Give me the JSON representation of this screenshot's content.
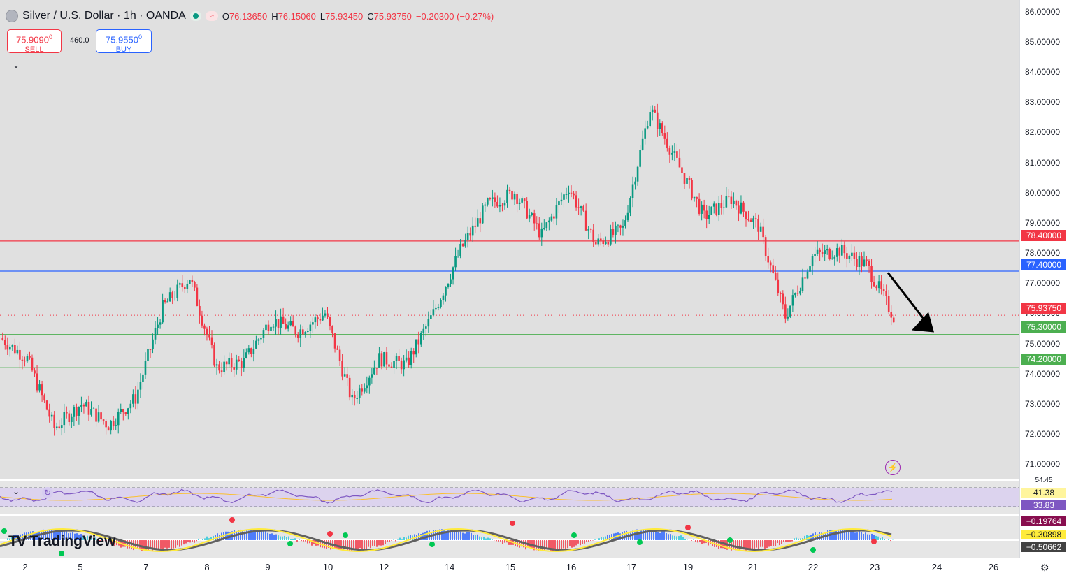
{
  "header": {
    "symbol_title": "Silver / U.S. Dollar · 1h · OANDA",
    "ohlc": {
      "o_label": "O",
      "o": "76.13650",
      "h_label": "H",
      "h": "76.15060",
      "l_label": "L",
      "l": "75.93450",
      "c_label": "C",
      "c": "75.93750",
      "change": "−0.20300 (−0.27%)"
    },
    "sell_price": "75.9090",
    "sell_sup": "0",
    "sell_label": "SELL",
    "buy_price": "75.9550",
    "buy_sup": "0",
    "buy_label": "BUY",
    "spread": "460.0"
  },
  "price_axis": {
    "ticks": [
      "86.00000",
      "85.00000",
      "84.00000",
      "83.00000",
      "82.00000",
      "81.00000",
      "80.00000",
      "79.00000",
      "78.00000",
      "77.00000",
      "76.00000",
      "75.00000",
      "74.00000",
      "73.00000",
      "72.00000",
      "71.00000"
    ],
    "tags": {
      "resistance": "78.40000",
      "blue_level": "77.40000",
      "last_price": "75.93750",
      "support_1": "75.30000",
      "support_2": "74.20000"
    }
  },
  "time_axis": {
    "labels": [
      "2",
      "5",
      "7",
      "8",
      "9",
      "10",
      "12",
      "14",
      "15",
      "16",
      "17",
      "19",
      "21",
      "22",
      "23",
      "24",
      "26"
    ]
  },
  "indicators": {
    "rsi_top": "54.45",
    "rsi_value": "41.38",
    "rsi_ma": "33.83",
    "macd_values": [
      "−0.19764",
      "−0.30898",
      "−0.50662"
    ]
  },
  "branding": {
    "logo_text": "TradingView"
  },
  "colors": {
    "up": "#089981",
    "down": "#f23645",
    "resistance": "#f23645",
    "blue_level": "#2962ff",
    "support": "#4caf50",
    "rsi": "#7e57c2"
  },
  "chart_data": {
    "type": "candlestick",
    "symbol": "XAGUSD",
    "timeframe": "1h",
    "ylim": [
      70.5,
      86.2
    ],
    "hlines": [
      {
        "name": "resistance",
        "value": 78.4
      },
      {
        "name": "blue_level",
        "value": 77.4
      },
      {
        "name": "support_1",
        "value": 75.3
      },
      {
        "name": "support_2",
        "value": 74.2
      }
    ],
    "last_price": 75.9375,
    "annotation": "down arrow pointing toward 75.30",
    "close_path": [
      [
        2,
        75.2
      ],
      [
        3,
        74.5
      ],
      [
        4,
        72.2
      ],
      [
        5,
        73.0
      ],
      [
        6,
        72.3
      ],
      [
        7,
        73.2
      ],
      [
        8,
        76.2
      ],
      [
        9,
        77.2
      ],
      [
        10,
        74.2
      ],
      [
        11,
        74.4
      ],
      [
        12,
        75.8
      ],
      [
        13,
        75.4
      ],
      [
        14,
        76.0
      ],
      [
        15,
        73.1
      ],
      [
        16,
        74.5
      ],
      [
        17,
        74.3
      ],
      [
        18,
        76.0
      ],
      [
        19,
        78.1
      ],
      [
        20,
        79.6
      ],
      [
        21,
        80.0
      ],
      [
        22,
        78.6
      ],
      [
        23,
        80.2
      ],
      [
        24,
        78.3
      ],
      [
        25,
        78.8
      ],
      [
        26,
        82.8
      ],
      [
        27,
        81.0
      ],
      [
        28,
        79.2
      ],
      [
        29,
        79.8
      ],
      [
        30,
        78.9
      ],
      [
        31,
        75.9
      ],
      [
        32,
        77.9
      ],
      [
        33,
        78.1
      ],
      [
        34,
        77.6
      ],
      [
        35,
        75.9
      ]
    ]
  }
}
